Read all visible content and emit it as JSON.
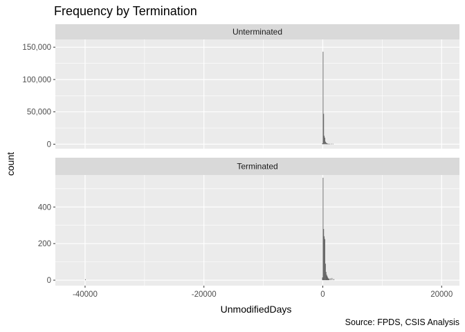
{
  "chart_data": {
    "type": "bar",
    "title": "Frequency by Termination",
    "xlabel": "UnmodifiedDays",
    "ylabel": "count",
    "caption": "Source: FPDS, CSIS Analysis",
    "xlim": [
      -45000,
      23000
    ],
    "x_ticks": [
      -40000,
      -20000,
      0,
      20000
    ],
    "x_tick_labels": [
      "-40000",
      "-20000",
      "0",
      "20000"
    ],
    "bin_width": 100,
    "grid": true,
    "panels": [
      {
        "strip": "Unterminated",
        "ylim": [
          -7000,
          162000
        ],
        "y_ticks": [
          0,
          50000,
          100000,
          150000
        ],
        "y_tick_labels": [
          "0",
          "50,000",
          "100,000",
          "150,000"
        ],
        "bins": [
          {
            "x": -100,
            "count": 1500
          },
          {
            "x": 0,
            "count": 143000
          },
          {
            "x": 100,
            "count": 47000
          },
          {
            "x": 200,
            "count": 13000
          },
          {
            "x": 300,
            "count": 10000
          },
          {
            "x": 400,
            "count": 4000
          },
          {
            "x": 500,
            "count": 2500
          },
          {
            "x": 600,
            "count": 1500
          },
          {
            "x": 700,
            "count": 1200
          },
          {
            "x": 800,
            "count": 800
          },
          {
            "x": 900,
            "count": 500
          },
          {
            "x": 1000,
            "count": 400
          },
          {
            "x": 1100,
            "count": 300
          },
          {
            "x": 1300,
            "count": 300
          },
          {
            "x": 1500,
            "count": 800
          },
          {
            "x": 1700,
            "count": 200
          }
        ]
      },
      {
        "strip": "Terminated",
        "ylim": [
          -30,
          575
        ],
        "y_ticks": [
          0,
          200,
          400
        ],
        "y_tick_labels": [
          "0",
          "200",
          "400"
        ],
        "bins": [
          {
            "x": -40000,
            "count": 5
          },
          {
            "x": -100,
            "count": 15
          },
          {
            "x": 0,
            "count": 560
          },
          {
            "x": 100,
            "count": 280
          },
          {
            "x": 200,
            "count": 240
          },
          {
            "x": 300,
            "count": 225
          },
          {
            "x": 400,
            "count": 90
          },
          {
            "x": 500,
            "count": 45
          },
          {
            "x": 600,
            "count": 30
          },
          {
            "x": 700,
            "count": 22
          },
          {
            "x": 800,
            "count": 15
          },
          {
            "x": 900,
            "count": 10
          },
          {
            "x": 1000,
            "count": 8
          },
          {
            "x": 1200,
            "count": 10
          },
          {
            "x": 1500,
            "count": 12
          },
          {
            "x": 1800,
            "count": 6
          }
        ]
      }
    ],
    "colors": {
      "panel_bg": "#ebebeb",
      "strip_bg": "#d9d9d9",
      "grid": "#ffffff",
      "bar": "#595959"
    }
  }
}
